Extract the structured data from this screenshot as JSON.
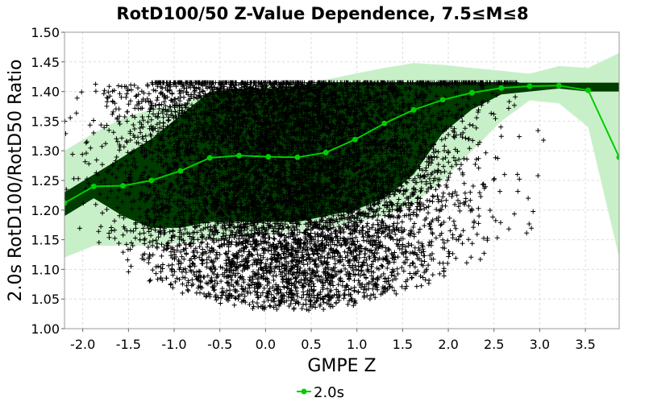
{
  "chart_data": {
    "type": "line",
    "title": "RotD100/50 Z-Value Dependence, 7.5≤M≤8",
    "xlabel": "GMPE Z",
    "ylabel": "2.0s RotD100/RotD50 Ratio",
    "xlim": [
      -2.2,
      3.87
    ],
    "ylim": [
      1.0,
      1.5
    ],
    "xticks": [
      -2.0,
      -1.5,
      -1.0,
      -0.5,
      0.0,
      0.5,
      1.0,
      1.5,
      2.0,
      2.5,
      3.0,
      3.5
    ],
    "xtick_labels": [
      "-2.0",
      "-1.5",
      "-1.0",
      "-0.5",
      "0.0",
      "0.5",
      "1.0",
      "1.5",
      "2.0",
      "2.5",
      "3.0",
      "3.5"
    ],
    "yticks": [
      1.0,
      1.05,
      1.1,
      1.15,
      1.2,
      1.25,
      1.3,
      1.35,
      1.4,
      1.45,
      1.5
    ],
    "ytick_labels": [
      "1.00",
      "1.05",
      "1.10",
      "1.15",
      "1.20",
      "1.25",
      "1.30",
      "1.35",
      "1.40",
      "1.45",
      "1.50"
    ],
    "grid": true,
    "legend_position": "bottom-center",
    "colors": {
      "line": "#00cc00",
      "inner_band": "#003b00",
      "outer_band": "#c8f0c8",
      "scatter": "#000000",
      "grid": "#dddddd"
    },
    "series": [
      {
        "name": "2.0s",
        "x": [
          -2.2,
          -1.88,
          -1.56,
          -1.25,
          -0.93,
          -0.61,
          -0.29,
          0.03,
          0.35,
          0.66,
          0.98,
          1.3,
          1.62,
          1.94,
          2.26,
          2.58,
          2.89,
          3.21,
          3.53,
          3.87
        ],
        "y": [
          1.212,
          1.24,
          1.241,
          1.25,
          1.266,
          1.288,
          1.292,
          1.29,
          1.289,
          1.297,
          1.319,
          1.346,
          1.369,
          1.386,
          1.398,
          1.406,
          1.409,
          1.41,
          1.402,
          1.289
        ]
      }
    ],
    "bands": {
      "inner_upper": [
        1.23,
        1.26,
        1.29,
        1.32,
        1.36,
        1.4,
        1.405,
        1.405,
        1.41,
        1.415,
        1.415,
        1.415,
        1.415,
        1.415,
        1.415,
        1.415,
        1.415,
        1.415,
        1.415,
        1.415
      ],
      "inner_lower": [
        1.19,
        1.22,
        1.19,
        1.17,
        1.17,
        1.18,
        1.18,
        1.18,
        1.18,
        1.19,
        1.2,
        1.22,
        1.26,
        1.33,
        1.37,
        1.395,
        1.4,
        1.405,
        1.4,
        1.4
      ],
      "outer_upper": [
        1.3,
        1.33,
        1.355,
        1.37,
        1.38,
        1.395,
        1.4,
        1.41,
        1.415,
        1.42,
        1.43,
        1.44,
        1.448,
        1.445,
        1.44,
        1.435,
        1.43,
        1.443,
        1.44,
        1.465
      ],
      "outer_lower": [
        1.12,
        1.14,
        1.14,
        1.14,
        1.145,
        1.15,
        1.155,
        1.16,
        1.165,
        1.17,
        1.18,
        1.19,
        1.21,
        1.25,
        1.3,
        1.35,
        1.385,
        1.38,
        1.34,
        1.12
      ]
    },
    "scatter_cap_y": 1.415
  }
}
